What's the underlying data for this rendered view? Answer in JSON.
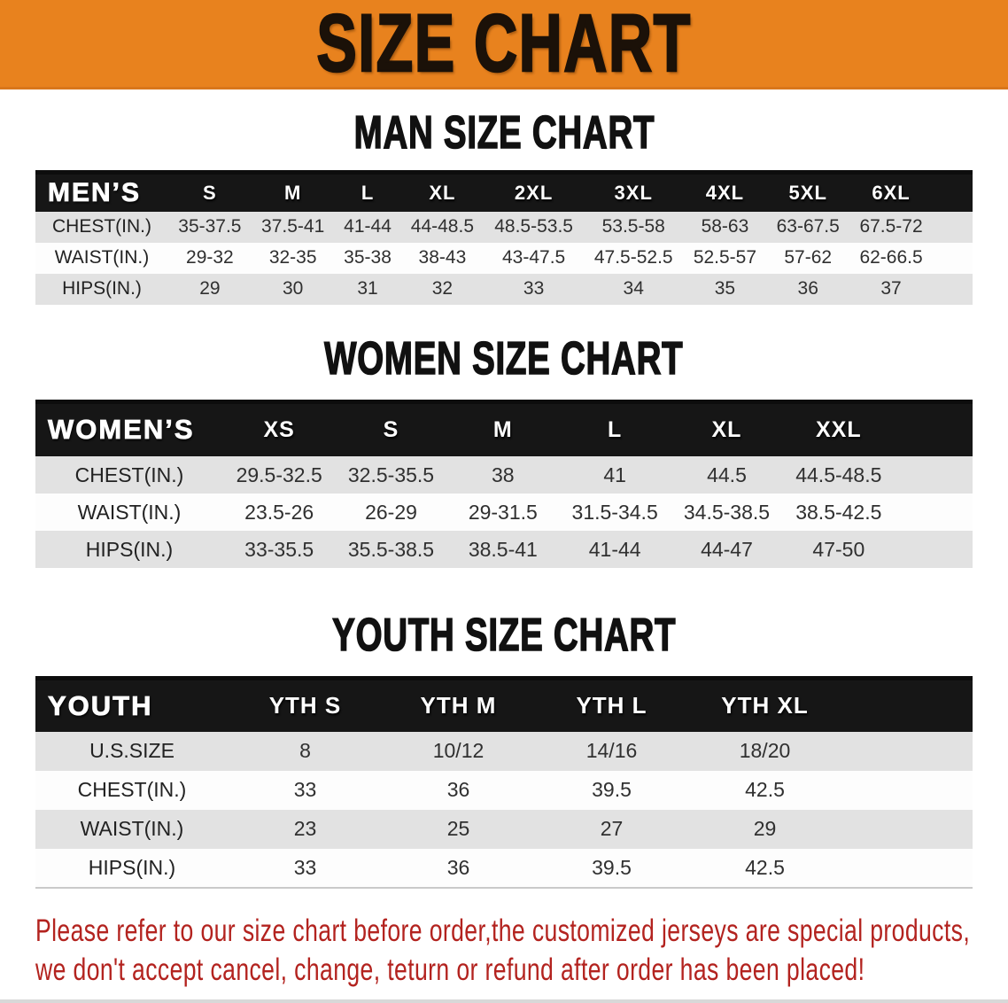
{
  "banner": {
    "title": "SIZE CHART"
  },
  "colors": {
    "banner_bg": "#e8821e",
    "table_header_bg": "#161616",
    "row_stripe": "#e2e2e2",
    "disclaimer_text": "#b3231f",
    "heading_text": "#111111"
  },
  "man": {
    "heading": "MAN SIZE CHART",
    "table": {
      "header": [
        "MEN’S",
        "S",
        "M",
        "L",
        "XL",
        "2XL",
        "3XL",
        "4XL",
        "5XL",
        "6XL"
      ],
      "rows": [
        {
          "label": "CHEST(IN.)",
          "values": [
            "35-37.5",
            "37.5-41",
            "41-44",
            "44-48.5",
            "48.5-53.5",
            "53.5-58",
            "58-63",
            "63-67.5",
            "67.5-72"
          ]
        },
        {
          "label": "WAIST(IN.)",
          "values": [
            "29-32",
            "32-35",
            "35-38",
            "38-43",
            "43-47.5",
            "47.5-52.5",
            "52.5-57",
            "57-62",
            "62-66.5"
          ]
        },
        {
          "label": "HIPS(IN.)",
          "values": [
            "29",
            "30",
            "31",
            "32",
            "33",
            "34",
            "35",
            "36",
            "37"
          ]
        }
      ]
    }
  },
  "women": {
    "heading": "WOMEN SIZE CHART",
    "table": {
      "header": [
        "WOMEN’S",
        "XS",
        "S",
        "M",
        "L",
        "XL",
        "XXL"
      ],
      "rows": [
        {
          "label": "CHEST(IN.)",
          "values": [
            "29.5-32.5",
            "32.5-35.5",
            "38",
            "41",
            "44.5",
            "44.5-48.5"
          ]
        },
        {
          "label": "WAIST(IN.)",
          "values": [
            "23.5-26",
            "26-29",
            "29-31.5",
            "31.5-34.5",
            "34.5-38.5",
            "38.5-42.5"
          ]
        },
        {
          "label": "HIPS(IN.)",
          "values": [
            "33-35.5",
            "35.5-38.5",
            "38.5-41",
            "41-44",
            "44-47",
            "47-50"
          ]
        }
      ]
    }
  },
  "youth": {
    "heading": "YOUTH SIZE CHART",
    "table": {
      "header": [
        "YOUTH",
        "YTH S",
        "YTH M",
        "YTH L",
        "YTH XL"
      ],
      "rows": [
        {
          "label": "U.S.SIZE",
          "values": [
            "8",
            "10/12",
            "14/16",
            "18/20"
          ]
        },
        {
          "label": "CHEST(IN.)",
          "values": [
            "33",
            "36",
            "39.5",
            "42.5"
          ]
        },
        {
          "label": "WAIST(IN.)",
          "values": [
            "23",
            "25",
            "27",
            "29"
          ]
        },
        {
          "label": "HIPS(IN.)",
          "values": [
            "33",
            "36",
            "39.5",
            "42.5"
          ]
        }
      ]
    }
  },
  "disclaimer": {
    "line1": "Please refer to our size chart before order,the customized jerseys are special products,",
    "line2": "we don't accept cancel, change, teturn or refund after order has been placed!"
  }
}
